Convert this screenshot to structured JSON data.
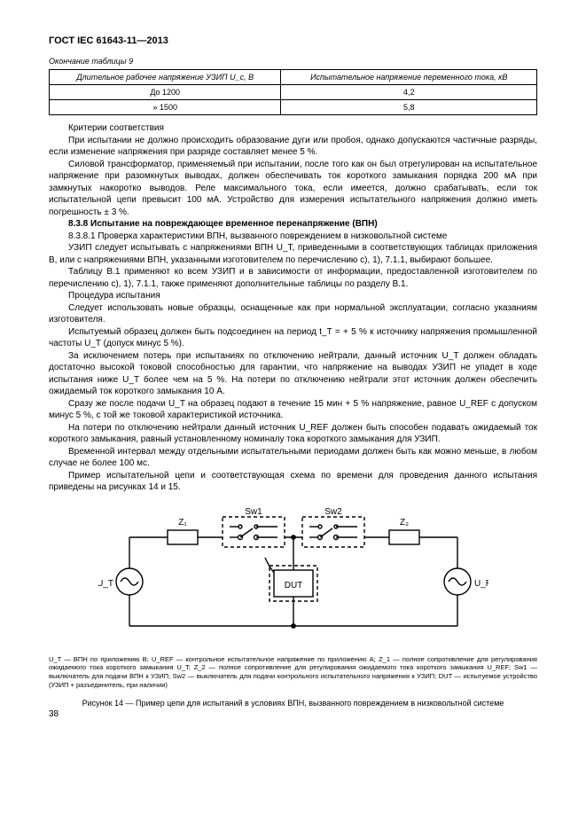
{
  "header": "ГОСТ IEC 61643-11—2013",
  "table_caption": "Окончание таблицы 9",
  "table": {
    "col1_head": "Длительное рабочее напряжение УЗИП U_c, В",
    "col2_head": "Испытательное напряжение переменного тока, кВ",
    "rows": [
      [
        "До 1200",
        "4,2"
      ],
      [
        "»   1500",
        "5,8"
      ]
    ]
  },
  "paras": {
    "p1": "Критерии соответствия",
    "p2": "При испытании не должно происходить образование дуги или пробоя, однако допускаются частичные разряды, если изменение напряжения при разряде составляет менее 5 %.",
    "p3": "Силовой трансформатор, применяемый при испытании, после того как он был отрегулирован на испытательное напряжение при разомкнутых выводах, должен обеспечивать ток короткого замыкания порядка 200 мА при замкнутых накоротко выводов. Реле максимального тока, если имеется, должно срабатывать, если ток испытательной цепи превысит 100 мА. Устройство для измерения испытательного напряжения должно иметь погрешность ± 3 %.",
    "p4": "8.3.8 Испытание на повреждающее временное перенапряжение (ВПН)",
    "p5": "8.3.8.1 Проверка характеристики ВПН, вызванного повреждением в низковольтной системе",
    "p6": "УЗИП следует испытывать с напряжениями ВПН U_T, приведенными в соответствующих таблицах приложения В, или с напряжениями ВПН, указанными изготовителем по перечислению с), 1), 7.1.1, выбирают большее.",
    "p7": "Таблицу В.1 применяют ко всем УЗИП и в зависимости от информации, предоставленной изготовителем по перечислению с), 1), 7.1.1, также применяют дополнительные таблицы по разделу В.1.",
    "p8": "Процедура испытания",
    "p9": "Следует использовать новые образцы, оснащенные как при нормальной эксплуатации, согласно указаниям изготовителя.",
    "p10": "Испытуемый образец должен быть подсоединен на период t_T = + 5 % к источнику напряжения промышленной частоты U_T (допуск минус 5 %).",
    "p11": "За исключением потерь при испытаниях по отключению нейтрали, данный источник U_T должен обладать достаточно высокой токовой способностью для гарантии, что напряжение на выводах УЗИП не упадет в ходе испытания ниже U_T более чем на 5 %. На потери по отключению нейтрали этот источник должен обеспечить ожидаемый ток короткого замыкания 10 А.",
    "p12": "Сразу же после подачи U_T на образец подают в течение 15 мин + 5 % напряжение, равное U_REF с допуском минус 5 %, с той же токовой характеристикой источника.",
    "p13": "На потери по отключению нейтрали данный источник U_REF должен быть способен подавать ожидаемый ток короткого замыкания, равный установленному номиналу тока короткого замыкания для УЗИП.",
    "p14": "Временной интервал между отдельными испытательными периодами должен быть как можно меньше, в любом случае не более 100 мс.",
    "p15": "Пример испытательной цепи и соответствующая схема по времени для проведения данного испытания приведены на рисунках 14 и 15."
  },
  "footnote": "U_T — ВПН по приложению B; U_REF — контрольное испытательное напряжение по приложению А; Z_1 — полное сопротивление для регулирования ожидаемого тока короткого замыкания U_T; Z_2 — полное сопротивление для регулирования ожидаемого тока короткого замыкания U_REF; Sw1 — выключатель для подачи ВПН к УЗИП; Sw2 — выключатель для подачи контрольного испытательного напряжения к УЗИП; DUT — испытуемое устройство (УЗИП + разъединитель, при наличии)",
  "fig_caption": "Рисунок 14 — Пример цепи для испытаний в условиях ВПН, вызванного повреждением в низковольтной системе",
  "page_num": "38",
  "diagram": {
    "labels": {
      "z1": "Z₁",
      "z2": "Z₂",
      "sw1": "Sw1",
      "sw2": "Sw2",
      "ut": "U_T",
      "uref": "U_REF",
      "dut": "DUT"
    },
    "stroke": "#000000",
    "stroke_width": 1.4,
    "font_size": 10
  }
}
